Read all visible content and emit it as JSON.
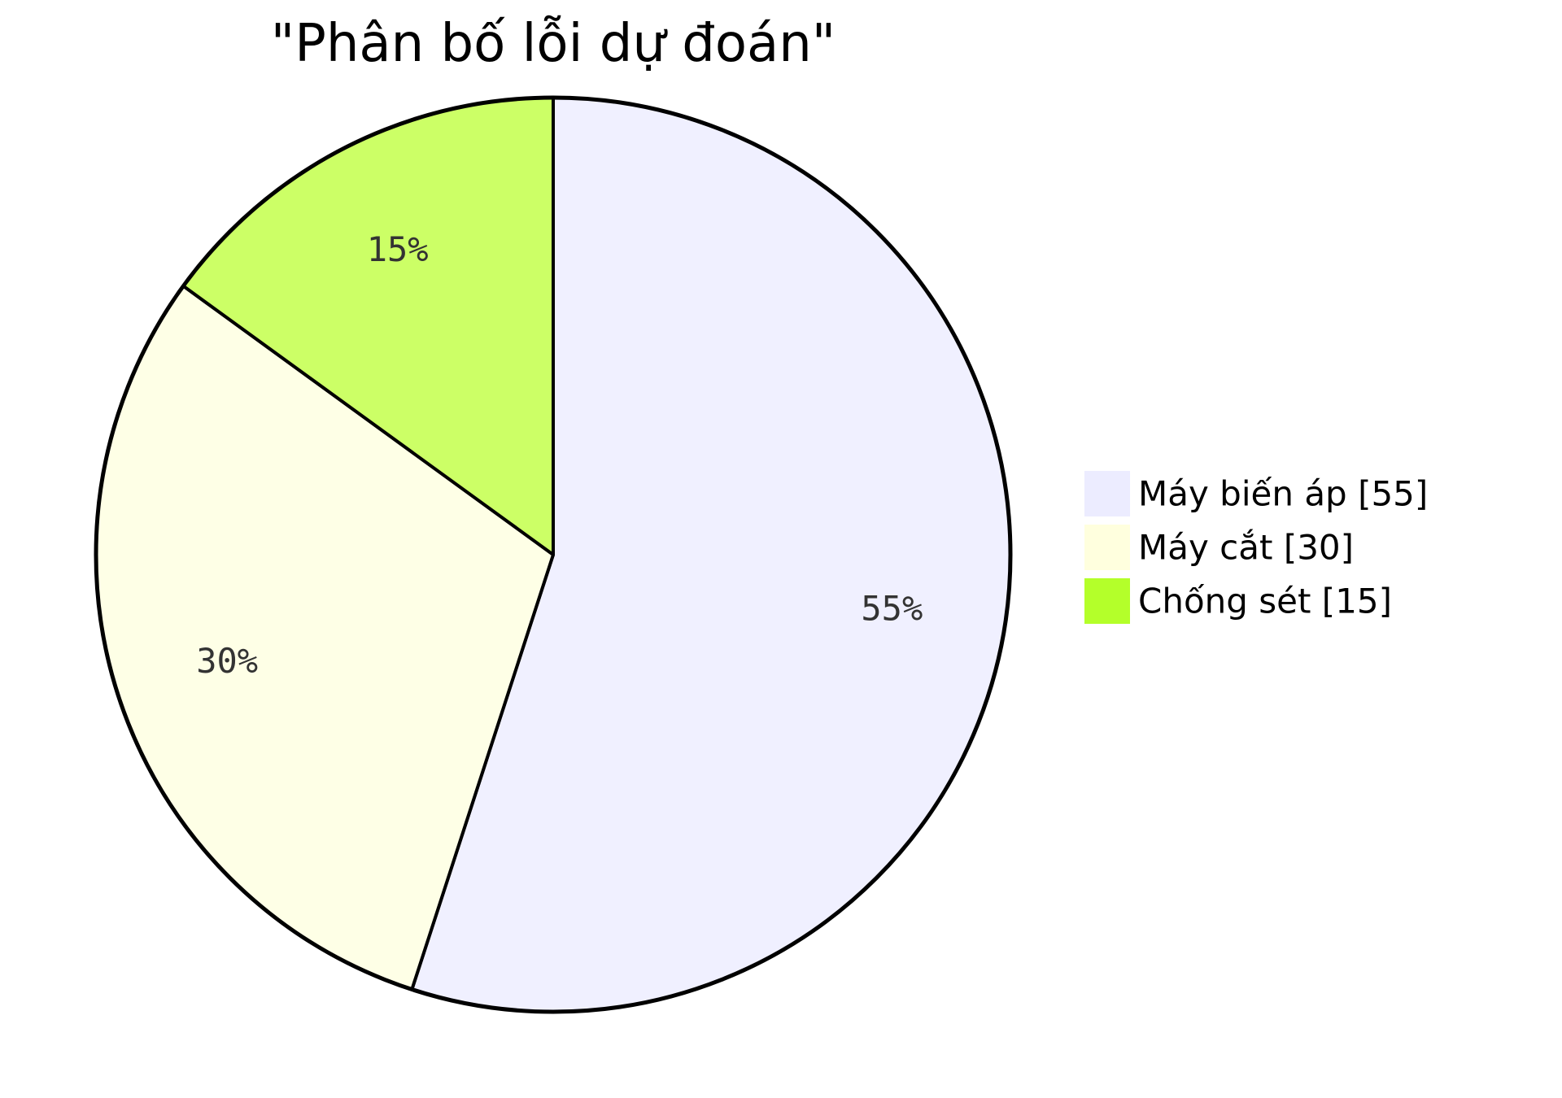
{
  "chart_data": {
    "type": "pie",
    "title": "\"Phân bố lỗi dự đoán\"",
    "start_angle_deg": 0,
    "direction": "clockwise",
    "legend_position": "right",
    "slices": [
      {
        "label": "Máy biến áp",
        "value": 55,
        "percent_label": "55%",
        "legend_label": "Máy biến áp [55]",
        "color": "#ECECFF",
        "fill": "#F0F0FF"
      },
      {
        "label": "Máy cắt",
        "value": 30,
        "percent_label": "30%",
        "legend_label": "Máy cắt [30]",
        "color": "#FFFFDE",
        "fill": "#FEFFE6"
      },
      {
        "label": "Chống sét",
        "value": 15,
        "percent_label": "15%",
        "legend_label": "Chống sét [15]",
        "color": "#B4FF2A",
        "fill": "#CCFF66"
      }
    ],
    "stroke_color": "#000000"
  }
}
